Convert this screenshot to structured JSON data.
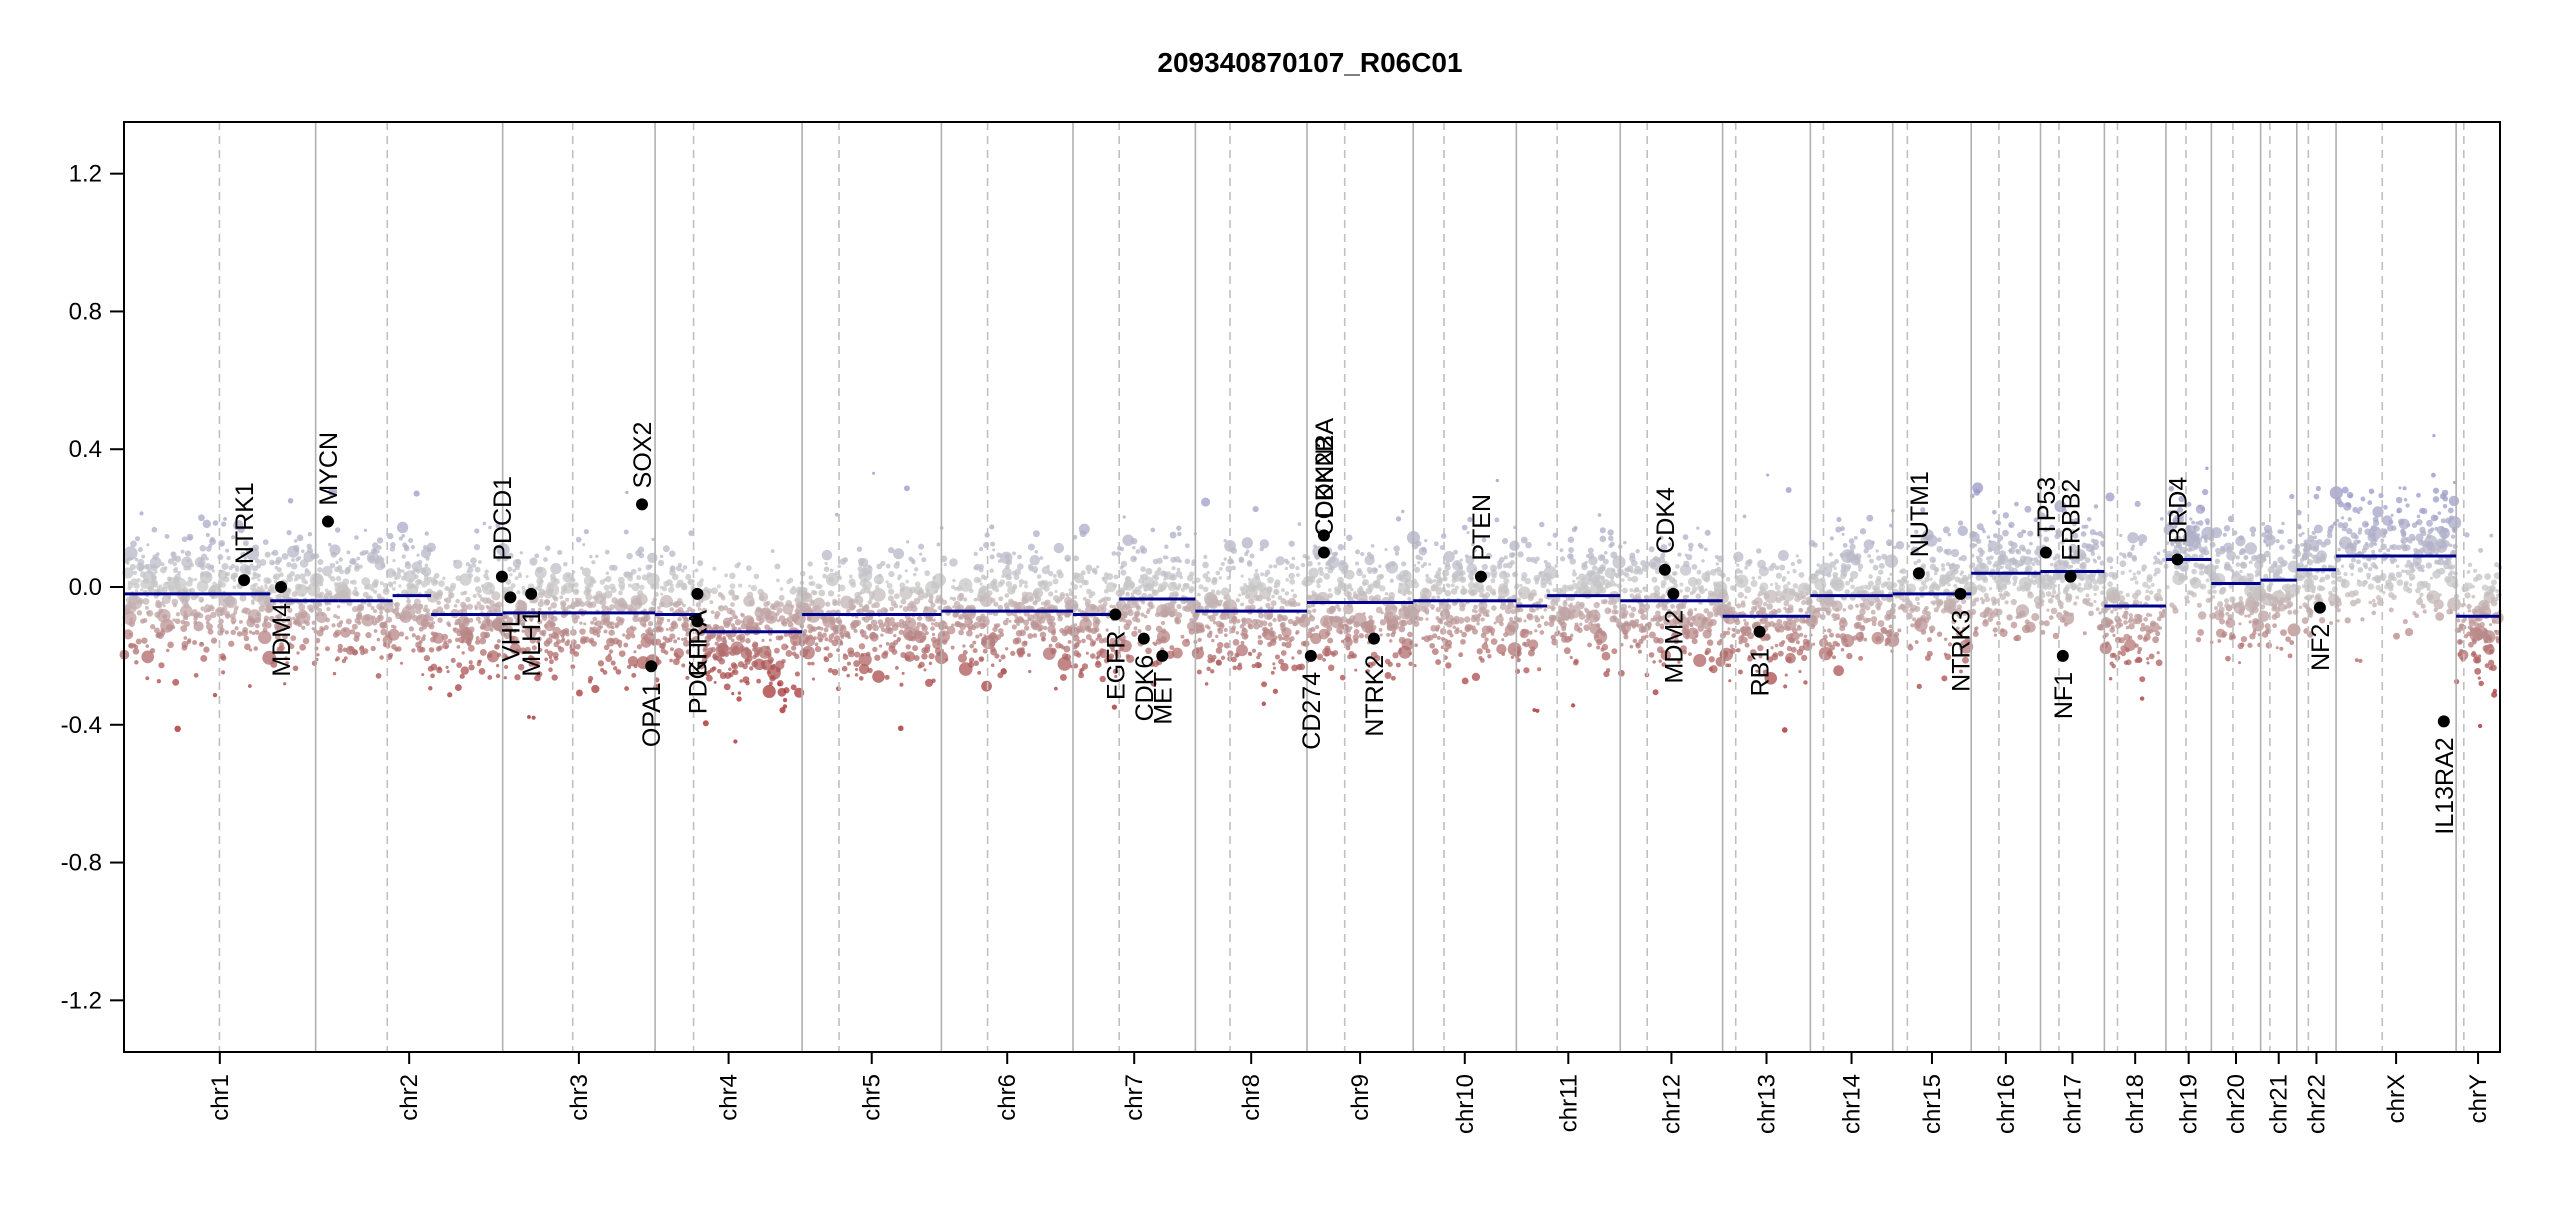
{
  "chart_data": {
    "type": "scatter",
    "title": "209340870107_R06C01",
    "xlabel": "",
    "ylabel": "",
    "ylim": [
      -1.35,
      1.35
    ],
    "yticks": [
      "1.2",
      "0.8",
      "0.4",
      "0.0",
      "-0.4",
      "-0.8",
      "-1.2"
    ],
    "ytick_values": [
      1.2,
      0.8,
      0.4,
      0.0,
      -0.4,
      -0.8,
      -1.2
    ],
    "grid": false,
    "colors": {
      "gain": "#8c8cc8",
      "neutral": "#c8c8c8",
      "loss": "#a02020",
      "segment": "#00008b",
      "gene_point": "#000000"
    },
    "chromosomes": [
      {
        "name": "chr1",
        "length": 249,
        "centromere": 124
      },
      {
        "name": "chr2",
        "length": 243,
        "centromere": 93
      },
      {
        "name": "chr3",
        "length": 198,
        "centromere": 91
      },
      {
        "name": "chr4",
        "length": 191,
        "centromere": 50
      },
      {
        "name": "chr5",
        "length": 181,
        "centromere": 48
      },
      {
        "name": "chr6",
        "length": 171,
        "centromere": 60
      },
      {
        "name": "chr7",
        "length": 159,
        "centromere": 60
      },
      {
        "name": "chr8",
        "length": 145,
        "centromere": 45
      },
      {
        "name": "chr9",
        "length": 138,
        "centromere": 49
      },
      {
        "name": "chr10",
        "length": 134,
        "centromere": 40
      },
      {
        "name": "chr11",
        "length": 135,
        "centromere": 53
      },
      {
        "name": "chr12",
        "length": 133,
        "centromere": 35
      },
      {
        "name": "chr13",
        "length": 114,
        "centromere": 17
      },
      {
        "name": "chr14",
        "length": 107,
        "centromere": 17
      },
      {
        "name": "chr15",
        "length": 102,
        "centromere": 19
      },
      {
        "name": "chr16",
        "length": 90,
        "centromere": 36
      },
      {
        "name": "chr17",
        "length": 83,
        "centromere": 24
      },
      {
        "name": "chr18",
        "length": 80,
        "centromere": 17
      },
      {
        "name": "chr19",
        "length": 59,
        "centromere": 26
      },
      {
        "name": "chr20",
        "length": 64,
        "centromere": 28
      },
      {
        "name": "chr21",
        "length": 47,
        "centromere": 12
      },
      {
        "name": "chr22",
        "length": 51,
        "centromere": 15
      },
      {
        "name": "chrX",
        "length": 156,
        "centromere": 60
      },
      {
        "name": "chrY",
        "length": 57,
        "centromere": 10
      }
    ],
    "segments": [
      {
        "chr": "chr1",
        "start": 0,
        "end": 190,
        "value": -0.02
      },
      {
        "chr": "chr1",
        "start": 190,
        "end": 210,
        "value": -0.04
      },
      {
        "chr": "chr1",
        "start": 210,
        "end": 249,
        "value": -0.04
      },
      {
        "chr": "chr2",
        "start": 0,
        "end": 30,
        "value": -0.04
      },
      {
        "chr": "chr2",
        "start": 30,
        "end": 100,
        "value": -0.04
      },
      {
        "chr": "chr2",
        "start": 100,
        "end": 150,
        "value": -0.025
      },
      {
        "chr": "chr2",
        "start": 150,
        "end": 243,
        "value": -0.08
      },
      {
        "chr": "chr3",
        "start": 0,
        "end": 198,
        "value": -0.075
      },
      {
        "chr": "chr4",
        "start": 0,
        "end": 60,
        "value": -0.08
      },
      {
        "chr": "chr4",
        "start": 60,
        "end": 191,
        "value": -0.13
      },
      {
        "chr": "chr5",
        "start": 0,
        "end": 181,
        "value": -0.08
      },
      {
        "chr": "chr6",
        "start": 0,
        "end": 171,
        "value": -0.07
      },
      {
        "chr": "chr7",
        "start": 0,
        "end": 60,
        "value": -0.08
      },
      {
        "chr": "chr7",
        "start": 60,
        "end": 159,
        "value": -0.035
      },
      {
        "chr": "chr8",
        "start": 0,
        "end": 145,
        "value": -0.07
      },
      {
        "chr": "chr9",
        "start": 0,
        "end": 138,
        "value": -0.045
      },
      {
        "chr": "chr10",
        "start": 0,
        "end": 134,
        "value": -0.04
      },
      {
        "chr": "chr11",
        "start": 0,
        "end": 40,
        "value": -0.055
      },
      {
        "chr": "chr11",
        "start": 40,
        "end": 135,
        "value": -0.025
      },
      {
        "chr": "chr12",
        "start": 0,
        "end": 133,
        "value": -0.04
      },
      {
        "chr": "chr13",
        "start": 0,
        "end": 114,
        "value": -0.085
      },
      {
        "chr": "chr14",
        "start": 0,
        "end": 107,
        "value": -0.025
      },
      {
        "chr": "chr15",
        "start": 0,
        "end": 102,
        "value": -0.02
      },
      {
        "chr": "chr16",
        "start": 0,
        "end": 90,
        "value": 0.04
      },
      {
        "chr": "chr17",
        "start": 0,
        "end": 83,
        "value": 0.045
      },
      {
        "chr": "chr18",
        "start": 0,
        "end": 80,
        "value": -0.055
      },
      {
        "chr": "chr19",
        "start": 0,
        "end": 59,
        "value": 0.08
      },
      {
        "chr": "chr20",
        "start": 0,
        "end": 64,
        "value": 0.01
      },
      {
        "chr": "chr21",
        "start": 0,
        "end": 47,
        "value": 0.02
      },
      {
        "chr": "chr22",
        "start": 0,
        "end": 51,
        "value": 0.05
      },
      {
        "chr": "chrX",
        "start": 0,
        "end": 156,
        "value": 0.09
      },
      {
        "chr": "chrY",
        "start": 0,
        "end": 57,
        "value": -0.085
      }
    ],
    "genes": [
      {
        "name": "NTRK1",
        "chr": "chr1",
        "pos": 156,
        "value": 0.02,
        "label_side": "above"
      },
      {
        "name": "MDM4",
        "chr": "chr1",
        "pos": 204,
        "value": 0.0,
        "label_side": "below"
      },
      {
        "name": "MYCN",
        "chr": "chr2",
        "pos": 16,
        "value": 0.19,
        "label_side": "above"
      },
      {
        "name": "PDCD1",
        "chr": "chr2",
        "pos": 242,
        "value": 0.03,
        "label_side": "above"
      },
      {
        "name": "VHL",
        "chr": "chr3",
        "pos": 10,
        "value": -0.03,
        "label_side": "below"
      },
      {
        "name": "MLH1",
        "chr": "chr3",
        "pos": 37,
        "value": -0.02,
        "label_side": "below"
      },
      {
        "name": "SOX2",
        "chr": "chr3",
        "pos": 181,
        "value": 0.24,
        "label_side": "above"
      },
      {
        "name": "OPA1",
        "chr": "chr3",
        "pos": 193,
        "value": -0.23,
        "label_side": "below"
      },
      {
        "name": "PDGFRA",
        "chr": "chr4",
        "pos": 55,
        "value": -0.02,
        "label_side": "below"
      },
      {
        "name": "KIT",
        "chr": "chr4",
        "pos": 55,
        "value": -0.1,
        "label_side": "below"
      },
      {
        "name": "EGFR",
        "chr": "chr7",
        "pos": 55,
        "value": -0.08,
        "label_side": "below"
      },
      {
        "name": "CDK6",
        "chr": "chr7",
        "pos": 92,
        "value": -0.15,
        "label_side": "below"
      },
      {
        "name": "MET",
        "chr": "chr7",
        "pos": 116,
        "value": -0.2,
        "label_side": "below"
      },
      {
        "name": "CD274",
        "chr": "chr9",
        "pos": 5,
        "value": -0.2,
        "label_side": "below"
      },
      {
        "name": "CDKN2A",
        "chr": "chr9",
        "pos": 22,
        "value": 0.15,
        "label_side": "above"
      },
      {
        "name": "CDKN2B",
        "chr": "chr9",
        "pos": 22,
        "value": 0.1,
        "label_side": "above"
      },
      {
        "name": "NTRK2",
        "chr": "chr9",
        "pos": 87,
        "value": -0.15,
        "label_side": "below"
      },
      {
        "name": "PTEN",
        "chr": "chr10",
        "pos": 88,
        "value": 0.03,
        "label_side": "above"
      },
      {
        "name": "CDK4",
        "chr": "chr12",
        "pos": 58,
        "value": 0.05,
        "label_side": "above"
      },
      {
        "name": "MDM2",
        "chr": "chr12",
        "pos": 69,
        "value": -0.02,
        "label_side": "below"
      },
      {
        "name": "RB1",
        "chr": "chr13",
        "pos": 48,
        "value": -0.13,
        "label_side": "below"
      },
      {
        "name": "NUTM1",
        "chr": "chr15",
        "pos": 34,
        "value": 0.04,
        "label_side": "above"
      },
      {
        "name": "NTRK3",
        "chr": "chr15",
        "pos": 88,
        "value": -0.02,
        "label_side": "below"
      },
      {
        "name": "TP53",
        "chr": "chr17",
        "pos": 7,
        "value": 0.1,
        "label_side": "above"
      },
      {
        "name": "NF1",
        "chr": "chr17",
        "pos": 29,
        "value": -0.2,
        "label_side": "below"
      },
      {
        "name": "ERBB2",
        "chr": "chr17",
        "pos": 39,
        "value": 0.03,
        "label_side": "above"
      },
      {
        "name": "BRD4",
        "chr": "chr19",
        "pos": 15,
        "value": 0.08,
        "label_side": "above"
      },
      {
        "name": "NF2",
        "chr": "chr22",
        "pos": 30,
        "value": -0.06,
        "label_side": "below"
      },
      {
        "name": "IL13RA2",
        "chr": "chrX",
        "pos": 140,
        "value": -0.39,
        "label_side": "below"
      }
    ]
  }
}
